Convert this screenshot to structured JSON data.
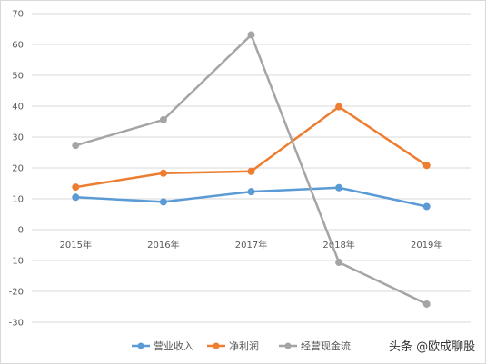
{
  "chart_data": {
    "type": "line",
    "title": "",
    "xlabel": "",
    "ylabel": "",
    "categories": [
      "2015年",
      "2016年",
      "2017年",
      "2018年",
      "2019年"
    ],
    "ylim": [
      -30,
      70
    ],
    "yticks": [
      70,
      60,
      50,
      40,
      30,
      20,
      10,
      0,
      -10,
      -20,
      -30
    ],
    "grid": true,
    "legend": "bottom",
    "series": [
      {
        "name": "营业收入",
        "color": "#5b9bd5",
        "values": [
          10.5,
          9,
          12.3,
          13.6,
          7.5
        ]
      },
      {
        "name": "净利润",
        "color": "#ed7d31",
        "values": [
          13.8,
          18.3,
          18.9,
          39.8,
          20.8
        ]
      },
      {
        "name": "经营现金流",
        "color": "#a5a5a5",
        "values": [
          27.3,
          35.6,
          63.1,
          -10.6,
          -24.1
        ]
      }
    ]
  },
  "watermark": {
    "prefix": "头条",
    "handle": "@欧成聊股"
  }
}
